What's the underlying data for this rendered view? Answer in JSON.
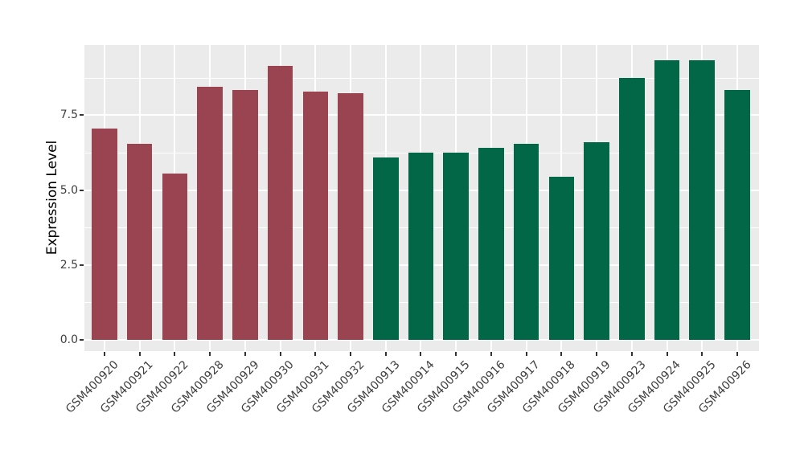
{
  "chart_data": {
    "type": "bar",
    "title": "",
    "xlabel": "",
    "ylabel": "Expression Level",
    "categories": [
      "GSM400920",
      "GSM400921",
      "GSM400922",
      "GSM400928",
      "GSM400929",
      "GSM400930",
      "GSM400931",
      "GSM400932",
      "GSM400913",
      "GSM400914",
      "GSM400915",
      "GSM400916",
      "GSM400917",
      "GSM400918",
      "GSM400919",
      "GSM400923",
      "GSM400924",
      "GSM400925",
      "GSM400926"
    ],
    "values": [
      7.05,
      6.55,
      5.55,
      8.45,
      8.35,
      9.15,
      8.3,
      8.25,
      6.1,
      6.25,
      6.25,
      6.4,
      6.55,
      5.45,
      6.6,
      8.75,
      9.35,
      9.35,
      8.35
    ],
    "groups": [
      "A",
      "A",
      "A",
      "A",
      "A",
      "A",
      "A",
      "A",
      "B",
      "B",
      "B",
      "B",
      "B",
      "B",
      "B",
      "B",
      "B",
      "B",
      "B"
    ],
    "group_colors": {
      "A": "#9A4351",
      "B": "#016747"
    },
    "y_ticks": [
      "0.0",
      "2.5",
      "5.0",
      "7.5"
    ],
    "y_tick_values": [
      0,
      2.5,
      5,
      7.5
    ],
    "y_minor_values": [
      1.25,
      3.75,
      6.25,
      8.75
    ],
    "ylim": [
      0,
      9.85
    ],
    "grid": "major-and-minor-white",
    "legend_position": "none",
    "colors": {
      "panel_bg": "#EBEBEB",
      "grid": "#FFFFFF",
      "axis_text": "#404040",
      "axis_title": "#000000",
      "tick_mark": "#333333",
      "page_bg": "#FFFFFF"
    }
  }
}
